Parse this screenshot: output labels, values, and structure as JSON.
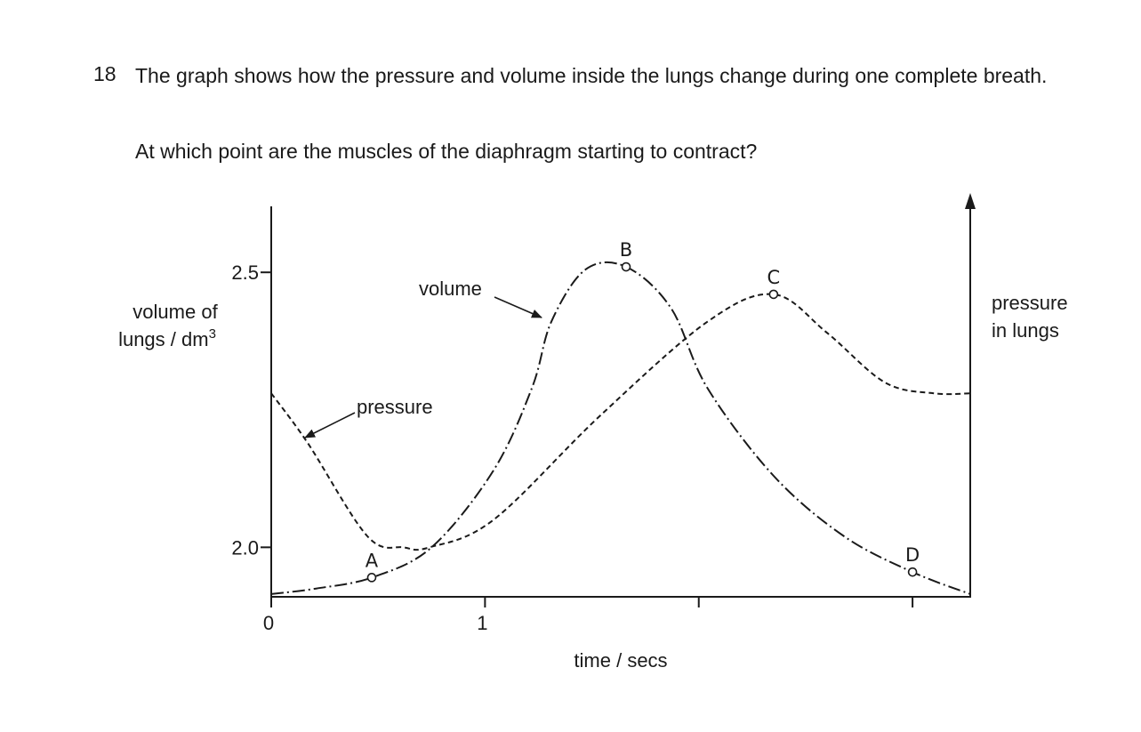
{
  "question": {
    "number": "18",
    "text": "The graph shows how the pressure and volume inside the lungs change during one complete breath.",
    "prompt": "At which point are the muscles of the diaphragm starting to contract?"
  },
  "chart_data": {
    "type": "line",
    "title": "",
    "xlabel": "time / secs",
    "ylabel_left": "volume of lungs / dm³",
    "ylabel_left_lines": [
      "volume of",
      "lungs / dm"
    ],
    "ylabel_left_sup": "3",
    "ylabel_right_lines": [
      "pressure",
      "in lungs"
    ],
    "xlim": [
      0,
      3.27
    ],
    "ylim": [
      1.91,
      2.62
    ],
    "x_ticks": [
      {
        "value": 0,
        "label": "0"
      },
      {
        "value": 1,
        "label": "1"
      },
      {
        "value": 2,
        "label": ""
      },
      {
        "value": 3,
        "label": ""
      }
    ],
    "y_ticks": [
      {
        "value": 2.0,
        "label": "2.0"
      },
      {
        "value": 2.5,
        "label": "2.5"
      }
    ],
    "grid": false,
    "series": [
      {
        "name": "volume",
        "style": "dash-dot",
        "x": [
          0,
          0.21,
          0.47,
          0.75,
          1.04,
          1.22,
          1.31,
          1.47,
          1.66,
          1.87,
          2.04,
          2.35,
          2.68,
          3.0,
          3.27
        ],
        "y": [
          1.915,
          1.925,
          1.945,
          2.0,
          2.14,
          2.29,
          2.41,
          2.505,
          2.51,
          2.435,
          2.29,
          2.13,
          2.02,
          1.955,
          1.915
        ]
      },
      {
        "name": "pressure",
        "style": "dashed",
        "x": [
          0,
          0.17,
          0.45,
          0.62,
          0.74,
          1.04,
          1.54,
          2.04,
          2.35,
          2.6,
          2.87,
          3.1,
          3.27
        ],
        "y": [
          2.28,
          2.19,
          2.02,
          2.0,
          2.0,
          2.05,
          2.24,
          2.41,
          2.46,
          2.39,
          2.3,
          2.28,
          2.28
        ]
      }
    ],
    "points": [
      {
        "label": "A",
        "x": 0.47,
        "y": 1.945
      },
      {
        "label": "B",
        "x": 1.66,
        "y": 2.51
      },
      {
        "label": "C",
        "x": 2.35,
        "y": 2.46
      },
      {
        "label": "D",
        "x": 3.0,
        "y": 1.955
      }
    ],
    "annotations": [
      {
        "text": "volume",
        "target": "volume"
      },
      {
        "text": "pressure",
        "target": "pressure"
      }
    ]
  }
}
